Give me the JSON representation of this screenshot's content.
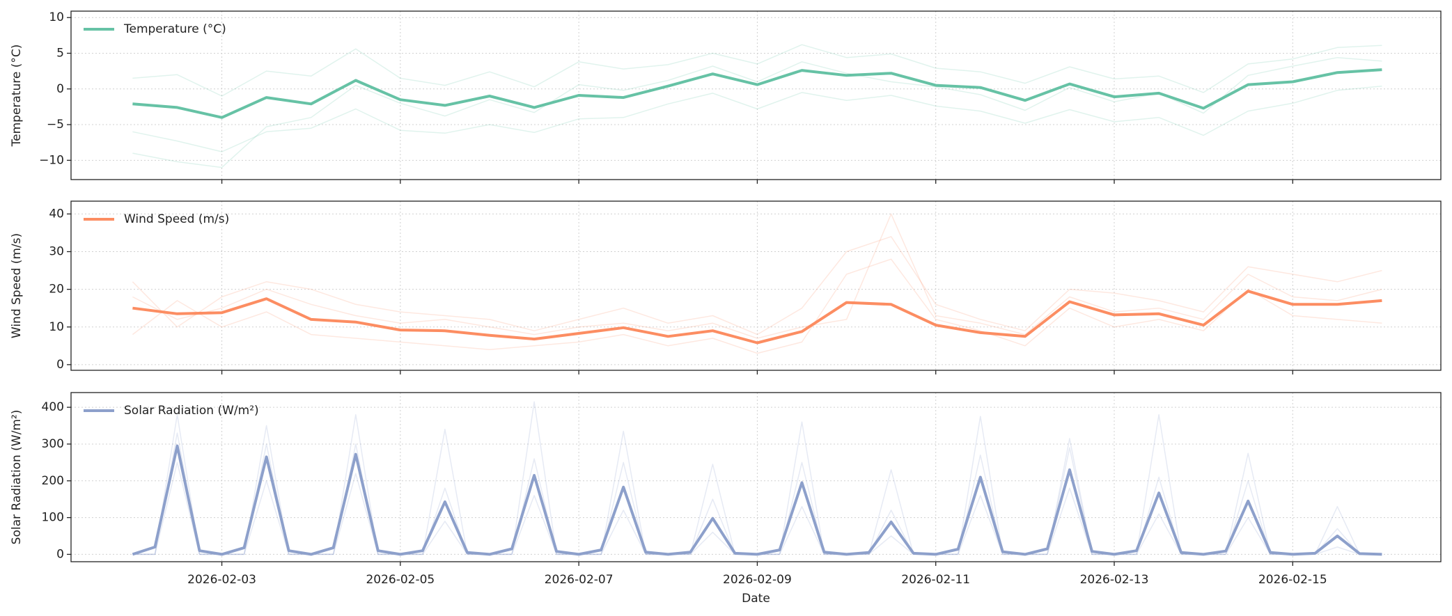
{
  "chart_data": [
    {
      "type": "line",
      "ylabel": "Temperature (°C)",
      "x": [
        0,
        0.5,
        1,
        1.5,
        2,
        2.5,
        3,
        3.5,
        4,
        4.5,
        5,
        5.5,
        6,
        6.5,
        7,
        7.5,
        8,
        8.5,
        9,
        9.5,
        10,
        10.5,
        11,
        11.5,
        12,
        12.5,
        13,
        13.5,
        14
      ],
      "xlim": [
        -0.69,
        14.66
      ],
      "xticks": [
        1,
        3,
        5,
        7,
        9,
        11,
        13
      ],
      "ylim": [
        -12.7,
        10.9
      ],
      "yticks": [
        {
          "value": -10,
          "label": "−10"
        },
        {
          "value": -5,
          "label": "−5"
        },
        0,
        5,
        10
      ],
      "grid": true,
      "legend": "upper left",
      "series": [
        {
          "color": "#66c2a5",
          "opacity": 0.2,
          "values": [
            1.5,
            2.0,
            -1.0,
            2.5,
            1.8,
            5.6,
            1.5,
            0.5,
            2.4,
            0.3,
            3.8,
            2.8,
            3.4,
            5.0,
            3.5,
            6.2,
            4.4,
            4.9,
            2.9,
            2.4,
            0.8,
            3.1,
            1.4,
            1.8,
            -0.5,
            3.5,
            4.2,
            5.8,
            6.1
          ]
        },
        {
          "color": "#66c2a5",
          "opacity": 0.2,
          "values": [
            -6.0,
            -7.3,
            -8.8,
            -6.0,
            -5.5,
            -2.8,
            -5.8,
            -6.2,
            -5.0,
            -6.1,
            -4.2,
            -4.0,
            -2.1,
            -0.6,
            -2.8,
            -0.5,
            -1.6,
            -0.9,
            -2.4,
            -3.1,
            -4.8,
            -2.9,
            -4.6,
            -4.0,
            -6.5,
            -3.1,
            -2.0,
            -0.2,
            0.4
          ]
        },
        {
          "color": "#66c2a5",
          "opacity": 0.2,
          "values": [
            -9.0,
            -10.2,
            -11.0,
            -5.3,
            -4.0,
            0.5,
            -2.0,
            -3.8,
            -1.5,
            -3.3,
            0.6,
            -0.2,
            1.2,
            3.2,
            1.0,
            3.8,
            2.2,
            1.0,
            0.3,
            -0.8,
            -3.0,
            0.2,
            -1.8,
            -0.6,
            -3.4,
            1.9,
            3.2,
            4.4,
            3.9
          ]
        },
        {
          "name": "Temperature (°C)",
          "color": "#66c2a5",
          "values": [
            -2.1,
            -2.6,
            -4.0,
            -1.2,
            -2.1,
            1.2,
            -1.5,
            -2.3,
            -1.0,
            -2.6,
            -0.9,
            -1.2,
            0.4,
            2.1,
            0.6,
            2.6,
            1.9,
            2.2,
            0.5,
            0.2,
            -1.6,
            0.7,
            -1.1,
            -0.6,
            -2.7,
            0.6,
            1.0,
            2.3,
            2.7
          ]
        }
      ]
    },
    {
      "type": "line",
      "ylabel": "Wind Speed (m/s)",
      "x": [
        0,
        0.5,
        1,
        1.5,
        2,
        2.5,
        3,
        3.5,
        4,
        4.5,
        5,
        5.5,
        6,
        6.5,
        7,
        7.5,
        8,
        8.5,
        9,
        9.5,
        10,
        10.5,
        11,
        11.5,
        12,
        12.5,
        13,
        13.5,
        14
      ],
      "xlim": [
        -0.69,
        14.66
      ],
      "xticks": [
        1,
        3,
        5,
        7,
        9,
        11,
        13
      ],
      "ylim": [
        -1.5,
        43.4
      ],
      "yticks": [
        0,
        10,
        20,
        30,
        40
      ],
      "grid": true,
      "legend": "upper left",
      "series": [
        {
          "color": "#fc8d62",
          "opacity": 0.2,
          "values": [
            22,
            10,
            18,
            22,
            20,
            16,
            14,
            13,
            12,
            9,
            12,
            15,
            11,
            13,
            8,
            15,
            30,
            34,
            16,
            12,
            9,
            20,
            19,
            17,
            14,
            26,
            24,
            22,
            25
          ]
        },
        {
          "color": "#fc8d62",
          "opacity": 0.2,
          "values": [
            8,
            17,
            10,
            14,
            8,
            7,
            6,
            5,
            4,
            5,
            6,
            8,
            5,
            7,
            3,
            6,
            24,
            28,
            12,
            9,
            5,
            15,
            10,
            12,
            9,
            20,
            13,
            12,
            11
          ]
        },
        {
          "color": "#fc8d62",
          "opacity": 0.2,
          "values": [
            18,
            12,
            15,
            20,
            16,
            13,
            11,
            12,
            10,
            8,
            10,
            11,
            9,
            11,
            7,
            10,
            12,
            40,
            13,
            11,
            8,
            18,
            14,
            15,
            12,
            24,
            18,
            17,
            20
          ]
        },
        {
          "name": "Wind Speed (m/s)",
          "color": "#fc8d62",
          "values": [
            15,
            13.5,
            13.8,
            17.5,
            12,
            11.3,
            9.2,
            9.0,
            7.8,
            6.8,
            8.3,
            9.8,
            7.5,
            9.0,
            5.8,
            8.8,
            16.5,
            16.0,
            10.5,
            8.5,
            7.5,
            16.7,
            13.2,
            13.5,
            10.5,
            19.5,
            16.0,
            16.0,
            17.0
          ]
        }
      ]
    },
    {
      "type": "line",
      "ylabel": "Solar Radiation (W/m²)",
      "xlabel": "Date",
      "x": [
        0,
        0.25,
        0.5,
        0.75,
        1,
        1.25,
        1.5,
        1.75,
        2,
        2.25,
        2.5,
        2.75,
        3,
        3.25,
        3.5,
        3.75,
        4,
        4.25,
        4.5,
        4.75,
        5,
        5.25,
        5.5,
        5.75,
        6,
        6.25,
        6.5,
        6.75,
        7,
        7.25,
        7.5,
        7.75,
        8,
        8.25,
        8.5,
        8.75,
        9,
        9.25,
        9.5,
        9.75,
        10,
        10.25,
        10.5,
        10.75,
        11,
        11.25,
        11.5,
        11.75,
        12,
        12.25,
        12.5,
        12.75,
        13,
        13.25,
        13.5,
        13.75,
        14
      ],
      "xlim": [
        -0.69,
        14.66
      ],
      "xticks": [
        {
          "value": 1,
          "label": "2026-02-03"
        },
        {
          "value": 3,
          "label": "2026-02-05"
        },
        {
          "value": 5,
          "label": "2026-02-07"
        },
        {
          "value": 7,
          "label": "2026-02-09"
        },
        {
          "value": 9,
          "label": "2026-02-11"
        },
        {
          "value": 11,
          "label": "2026-02-13"
        },
        {
          "value": 13,
          "label": "2026-02-15"
        }
      ],
      "ylim": [
        -20,
        440
      ],
      "yticks": [
        0,
        100,
        200,
        300,
        400
      ],
      "grid": true,
      "legend": "upper left",
      "series": [
        {
          "color": "#8da0cb",
          "opacity": 0.22,
          "values": [
            0,
            0,
            380,
            0,
            0,
            0,
            350,
            0,
            0,
            0,
            380,
            0,
            0,
            0,
            340,
            0,
            0,
            0,
            415,
            0,
            0,
            0,
            335,
            0,
            0,
            0,
            245,
            0,
            0,
            0,
            360,
            0,
            0,
            0,
            230,
            0,
            0,
            0,
            375,
            0,
            0,
            0,
            315,
            0,
            0,
            0,
            380,
            0,
            0,
            0,
            275,
            0,
            0,
            0,
            130,
            0,
            0
          ]
        },
        {
          "color": "#8da0cb",
          "opacity": 0.22,
          "values": [
            0,
            0,
            250,
            0,
            0,
            0,
            200,
            0,
            0,
            0,
            220,
            0,
            0,
            0,
            90,
            0,
            0,
            0,
            160,
            0,
            0,
            0,
            120,
            0,
            0,
            0,
            60,
            0,
            0,
            0,
            130,
            0,
            0,
            0,
            50,
            0,
            0,
            0,
            160,
            0,
            0,
            0,
            180,
            0,
            0,
            0,
            110,
            0,
            0,
            0,
            100,
            0,
            0,
            0,
            20,
            0,
            0
          ]
        },
        {
          "color": "#8da0cb",
          "opacity": 0.22,
          "values": [
            0,
            0,
            330,
            0,
            0,
            0,
            300,
            0,
            0,
            0,
            300,
            0,
            0,
            0,
            180,
            0,
            0,
            0,
            260,
            0,
            0,
            0,
            250,
            0,
            0,
            0,
            150,
            0,
            0,
            0,
            250,
            0,
            0,
            0,
            120,
            0,
            0,
            0,
            270,
            0,
            0,
            0,
            290,
            0,
            0,
            0,
            210,
            0,
            0,
            0,
            200,
            0,
            0,
            0,
            70,
            0,
            0
          ]
        },
        {
          "name": "Solar Radiation (W/m²)",
          "color": "#8da0cb",
          "values": [
            0,
            20,
            295,
            10,
            0,
            18,
            265,
            10,
            0,
            18,
            272,
            10,
            0,
            10,
            143,
            5,
            0,
            15,
            215,
            8,
            0,
            12,
            183,
            6,
            0,
            6,
            98,
            3,
            0,
            12,
            195,
            6,
            0,
            5,
            88,
            3,
            0,
            14,
            210,
            7,
            0,
            15,
            230,
            8,
            0,
            10,
            167,
            5,
            0,
            9,
            145,
            5,
            0,
            3,
            50,
            2,
            0
          ]
        }
      ]
    }
  ]
}
